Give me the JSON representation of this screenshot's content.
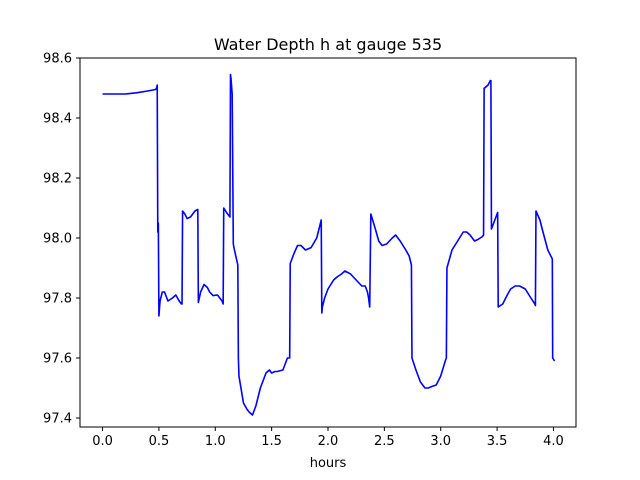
{
  "chart_data": {
    "type": "line",
    "title": "Water Depth h at gauge 535",
    "xlabel": "hours",
    "ylabel": "",
    "xlim": [
      -0.2,
      4.2
    ],
    "ylim": [
      97.37,
      98.6
    ],
    "xticks": [
      0.0,
      0.5,
      1.0,
      1.5,
      2.0,
      2.5,
      3.0,
      3.5,
      4.0
    ],
    "xtick_labels": [
      "0.0",
      "0.5",
      "1.0",
      "1.5",
      "2.0",
      "2.5",
      "3.0",
      "3.5",
      "4.0"
    ],
    "yticks": [
      97.4,
      97.6,
      97.8,
      98.0,
      98.2,
      98.4,
      98.6
    ],
    "ytick_labels": [
      "97.4",
      "97.6",
      "97.8",
      "98.0",
      "98.2",
      "98.4",
      "98.6"
    ],
    "grid": false,
    "series": [
      {
        "name": "",
        "color": "#0000ff",
        "x": [
          0.0,
          0.1,
          0.2,
          0.3,
          0.4,
          0.47,
          0.48,
          0.485,
          0.49,
          0.495,
          0.5,
          0.51,
          0.53,
          0.55,
          0.58,
          0.62,
          0.65,
          0.68,
          0.7,
          0.705,
          0.71,
          0.73,
          0.75,
          0.78,
          0.82,
          0.845,
          0.85,
          0.87,
          0.9,
          0.93,
          0.95,
          0.98,
          1.02,
          1.06,
          1.07,
          1.075,
          1.1,
          1.13,
          1.135,
          1.14,
          1.15,
          1.16,
          1.17,
          1.2,
          1.205,
          1.21,
          1.25,
          1.28,
          1.3,
          1.33,
          1.34,
          1.36,
          1.4,
          1.45,
          1.48,
          1.5,
          1.53,
          1.55,
          1.6,
          1.64,
          1.66,
          1.665,
          1.7,
          1.73,
          1.76,
          1.8,
          1.85,
          1.9,
          1.94,
          1.945,
          1.95,
          1.97,
          2.0,
          2.05,
          2.08,
          2.12,
          2.15,
          2.2,
          2.25,
          2.3,
          2.33,
          2.35,
          2.36,
          2.37,
          2.38,
          2.42,
          2.45,
          2.48,
          2.52,
          2.57,
          2.6,
          2.64,
          2.69,
          2.72,
          2.74,
          2.745,
          2.78,
          2.82,
          2.86,
          2.89,
          2.92,
          2.96,
          3.0,
          3.04,
          3.05,
          3.055,
          3.1,
          3.15,
          3.2,
          3.23,
          3.26,
          3.3,
          3.33,
          3.35,
          3.37,
          3.38,
          3.385,
          3.39,
          3.42,
          3.44,
          3.445,
          3.45,
          3.5,
          3.505,
          3.51,
          3.55,
          3.59,
          3.62,
          3.66,
          3.7,
          3.75,
          3.8,
          3.835,
          3.84,
          3.845,
          3.88,
          3.9,
          3.95,
          3.99,
          3.993,
          4.01
        ],
        "y": [
          98.48,
          98.48,
          98.48,
          98.484,
          98.49,
          98.495,
          98.5,
          98.51,
          98.02,
          98.05,
          97.74,
          97.79,
          97.82,
          97.82,
          97.79,
          97.8,
          97.81,
          97.79,
          97.78,
          97.78,
          98.09,
          98.08,
          98.065,
          98.07,
          98.09,
          98.095,
          97.785,
          97.82,
          97.845,
          97.835,
          97.82,
          97.808,
          97.81,
          97.79,
          97.78,
          98.1,
          98.085,
          98.07,
          98.545,
          98.53,
          98.48,
          97.98,
          97.96,
          97.91,
          97.6,
          97.54,
          97.45,
          97.43,
          97.42,
          97.41,
          97.42,
          97.44,
          97.5,
          97.55,
          97.56,
          97.55,
          97.555,
          97.555,
          97.56,
          97.6,
          97.6,
          97.915,
          97.95,
          97.975,
          97.975,
          97.96,
          97.968,
          98.0,
          98.06,
          97.75,
          97.77,
          97.8,
          97.83,
          97.86,
          97.87,
          97.88,
          97.89,
          97.88,
          97.86,
          97.84,
          97.84,
          97.82,
          97.8,
          97.77,
          98.08,
          98.03,
          97.99,
          97.975,
          97.98,
          98.0,
          98.01,
          97.99,
          97.96,
          97.94,
          97.91,
          97.6,
          97.56,
          97.52,
          97.5,
          97.5,
          97.505,
          97.51,
          97.54,
          97.59,
          97.6,
          97.9,
          97.96,
          97.99,
          98.02,
          98.02,
          98.01,
          97.99,
          97.995,
          98.0,
          98.005,
          98.01,
          98.5,
          98.5,
          98.51,
          98.525,
          98.525,
          98.03,
          98.08,
          98.085,
          97.77,
          97.78,
          97.81,
          97.83,
          97.84,
          97.84,
          97.83,
          97.8,
          97.78,
          97.775,
          98.09,
          98.06,
          98.03,
          97.96,
          97.93,
          97.6,
          97.59
        ]
      }
    ]
  }
}
